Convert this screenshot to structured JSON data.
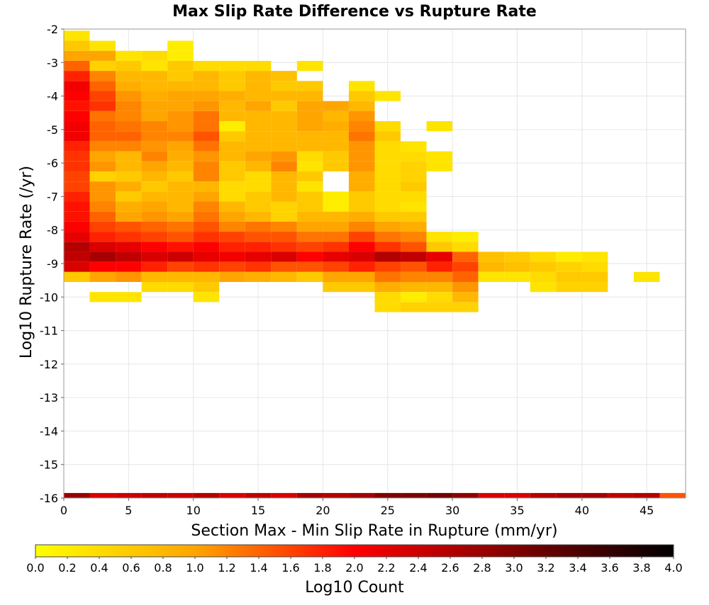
{
  "chart_data": {
    "type": "heatmap",
    "title": "Max Slip Rate Difference vs Rupture Rate",
    "xlabel": "Section Max - Min Slip Rate in Rupture (mm/yr)",
    "ylabel": "Log10 Rupture Rate (/yr)",
    "xlim": [
      0,
      48
    ],
    "ylim": [
      -16,
      -2
    ],
    "xticks": [
      "0",
      "5",
      "10",
      "15",
      "20",
      "25",
      "30",
      "35",
      "40",
      "45"
    ],
    "yticks": [
      "-2",
      "-3",
      "-4",
      "-5",
      "-6",
      "-7",
      "-8",
      "-9",
      "-10",
      "-11",
      "-12",
      "-13",
      "-14",
      "-15",
      "-16"
    ],
    "grid": true,
    "x_bin_width": 2,
    "y_bin_height": 0.3,
    "x_centers": [
      1,
      3,
      5,
      7,
      9,
      11,
      13,
      15,
      17,
      19,
      21,
      23,
      25,
      27,
      29,
      31,
      33,
      35,
      37,
      39,
      41,
      43,
      45,
      47
    ],
    "y_centers": [
      -2.2,
      -2.5,
      -2.8,
      -3.1,
      -3.4,
      -3.7,
      -4.0,
      -4.3,
      -4.6,
      -4.9,
      -5.2,
      -5.5,
      -5.8,
      -6.1,
      -6.4,
      -6.7,
      -7.0,
      -7.3,
      -7.6,
      -7.9,
      -8.2,
      -8.5,
      -8.8,
      -9.1,
      -9.4,
      -9.7,
      -10.0,
      -10.3,
      -16.0
    ],
    "z": [
      [
        0.3,
        null,
        null,
        null,
        null,
        null,
        null,
        null,
        null,
        null,
        null,
        null,
        null,
        null,
        null,
        null,
        null,
        null,
        null,
        null,
        null,
        null,
        null,
        null
      ],
      [
        0.6,
        0.3,
        null,
        null,
        0.2,
        null,
        null,
        null,
        null,
        null,
        null,
        null,
        null,
        null,
        null,
        null,
        null,
        null,
        null,
        null,
        null,
        null,
        null,
        null
      ],
      [
        1.0,
        1.0,
        0.3,
        0.4,
        0.2,
        null,
        null,
        null,
        null,
        null,
        null,
        null,
        null,
        null,
        null,
        null,
        null,
        null,
        null,
        null,
        null,
        null,
        null,
        null
      ],
      [
        1.4,
        0.5,
        0.6,
        0.3,
        0.6,
        0.4,
        0.4,
        0.4,
        null,
        0.3,
        null,
        null,
        null,
        null,
        null,
        null,
        null,
        null,
        null,
        null,
        null,
        null,
        null,
        null
      ],
      [
        1.8,
        1.2,
        0.8,
        0.8,
        0.6,
        0.8,
        0.6,
        0.8,
        0.7,
        null,
        null,
        null,
        null,
        null,
        null,
        null,
        null,
        null,
        null,
        null,
        null,
        null,
        null,
        null
      ],
      [
        2.1,
        1.4,
        0.9,
        0.8,
        0.8,
        0.8,
        0.6,
        0.8,
        0.6,
        0.6,
        null,
        0.3,
        null,
        null,
        null,
        null,
        null,
        null,
        null,
        null,
        null,
        null,
        null,
        null
      ],
      [
        2.0,
        1.6,
        1.1,
        0.9,
        1.0,
        1.0,
        0.9,
        0.8,
        0.8,
        0.8,
        null,
        0.6,
        0.3,
        null,
        null,
        null,
        null,
        null,
        null,
        null,
        null,
        null,
        null,
        null
      ],
      [
        1.9,
        1.7,
        1.2,
        1.0,
        1.0,
        1.1,
        0.8,
        1.0,
        0.6,
        1.0,
        1.0,
        0.8,
        null,
        null,
        null,
        null,
        null,
        null,
        null,
        null,
        null,
        null,
        null,
        null
      ],
      [
        2.0,
        1.3,
        1.2,
        1.0,
        1.1,
        1.3,
        0.8,
        0.8,
        0.8,
        1.0,
        0.8,
        1.1,
        null,
        null,
        null,
        null,
        null,
        null,
        null,
        null,
        null,
        null,
        null,
        null
      ],
      [
        2.1,
        1.4,
        1.3,
        1.2,
        1.1,
        1.3,
        0.2,
        0.8,
        0.8,
        1.0,
        0.9,
        1.2,
        0.4,
        null,
        0.3,
        null,
        null,
        null,
        null,
        null,
        null,
        null,
        null,
        null
      ],
      [
        2.1,
        1.4,
        1.4,
        1.2,
        1.2,
        1.5,
        0.6,
        0.8,
        0.8,
        0.8,
        0.8,
        1.3,
        0.6,
        null,
        null,
        null,
        null,
        null,
        null,
        null,
        null,
        null,
        null,
        null
      ],
      [
        1.8,
        1.2,
        1.2,
        1.1,
        1.0,
        1.3,
        0.8,
        0.8,
        0.8,
        0.8,
        0.8,
        1.1,
        0.4,
        0.3,
        null,
        null,
        null,
        null,
        null,
        null,
        null,
        null,
        null,
        null
      ],
      [
        1.7,
        1.0,
        0.8,
        1.2,
        0.9,
        1.1,
        0.8,
        1.0,
        1.1,
        0.4,
        0.6,
        1.1,
        0.4,
        0.4,
        0.3,
        null,
        null,
        null,
        null,
        null,
        null,
        null,
        null,
        null
      ],
      [
        1.7,
        1.1,
        0.8,
        1.0,
        0.8,
        1.2,
        0.6,
        0.8,
        1.2,
        0.3,
        0.6,
        1.1,
        0.4,
        0.5,
        0.3,
        null,
        null,
        null,
        null,
        null,
        null,
        null,
        null,
        null
      ],
      [
        1.6,
        0.5,
        0.6,
        0.8,
        0.6,
        1.2,
        0.6,
        0.4,
        0.8,
        0.6,
        null,
        0.9,
        0.4,
        0.5,
        null,
        null,
        null,
        null,
        null,
        null,
        null,
        null,
        null,
        null
      ],
      [
        1.6,
        1.1,
        0.9,
        0.6,
        0.8,
        0.8,
        0.4,
        0.4,
        0.8,
        0.3,
        null,
        0.9,
        0.4,
        0.6,
        null,
        null,
        null,
        null,
        null,
        null,
        null,
        null,
        null,
        null
      ],
      [
        1.8,
        1.1,
        0.6,
        0.8,
        0.8,
        1.0,
        0.4,
        0.6,
        0.8,
        0.6,
        0.2,
        0.6,
        0.4,
        0.4,
        null,
        null,
        null,
        null,
        null,
        null,
        null,
        null,
        null,
        null
      ],
      [
        1.9,
        1.2,
        0.9,
        1.0,
        0.8,
        1.2,
        0.8,
        0.6,
        0.5,
        0.6,
        0.2,
        0.6,
        0.4,
        0.3,
        null,
        null,
        null,
        null,
        null,
        null,
        null,
        null,
        null,
        null
      ],
      [
        1.9,
        1.4,
        1.0,
        1.1,
        1.0,
        1.3,
        1.0,
        0.8,
        0.5,
        0.8,
        0.8,
        0.9,
        0.6,
        0.6,
        null,
        null,
        null,
        null,
        null,
        null,
        null,
        null,
        null,
        null
      ],
      [
        2.0,
        1.6,
        1.5,
        1.4,
        1.3,
        1.5,
        1.2,
        1.3,
        1.2,
        1.0,
        1.0,
        1.2,
        1.0,
        0.9,
        null,
        null,
        null,
        null,
        null,
        null,
        null,
        null,
        null,
        null
      ],
      [
        2.2,
        1.8,
        1.7,
        1.6,
        1.5,
        1.7,
        1.6,
        1.5,
        1.5,
        1.3,
        1.3,
        1.6,
        1.3,
        1.2,
        0.3,
        0.2,
        null,
        null,
        null,
        null,
        null,
        null,
        null,
        null
      ],
      [
        2.6,
        2.3,
        2.2,
        2.0,
        1.9,
        2.0,
        1.8,
        1.8,
        1.7,
        1.6,
        1.7,
        2.0,
        1.7,
        1.5,
        0.6,
        0.4,
        null,
        null,
        null,
        null,
        null,
        null,
        null,
        null
      ],
      [
        2.5,
        2.7,
        2.5,
        2.3,
        2.4,
        2.2,
        2.1,
        2.2,
        2.3,
        2.0,
        2.2,
        2.3,
        2.6,
        2.5,
        2.2,
        1.4,
        0.7,
        0.6,
        0.4,
        0.2,
        0.3,
        null,
        null,
        null
      ],
      [
        2.3,
        2.0,
        2.0,
        1.8,
        1.6,
        1.7,
        1.6,
        1.7,
        1.5,
        1.5,
        1.6,
        1.8,
        1.6,
        1.5,
        1.8,
        1.6,
        0.8,
        0.7,
        0.6,
        0.5,
        0.4,
        null,
        null,
        null
      ],
      [
        0.6,
        1.0,
        1.1,
        0.8,
        0.8,
        0.8,
        1.0,
        0.9,
        0.8,
        0.6,
        1.0,
        1.0,
        1.3,
        1.2,
        1.2,
        1.4,
        0.3,
        0.3,
        0.4,
        0.6,
        0.6,
        null,
        0.3,
        null
      ],
      [
        null,
        null,
        null,
        0.4,
        0.4,
        0.6,
        null,
        null,
        null,
        null,
        0.6,
        0.6,
        0.9,
        0.8,
        0.8,
        1.1,
        null,
        null,
        0.3,
        0.5,
        0.5,
        null,
        null,
        null
      ],
      [
        null,
        0.3,
        0.3,
        null,
        null,
        0.3,
        null,
        null,
        null,
        null,
        null,
        null,
        0.4,
        0.2,
        0.4,
        0.8,
        null,
        null,
        null,
        null,
        null,
        null,
        null,
        null
      ],
      [
        null,
        null,
        null,
        null,
        null,
        null,
        null,
        null,
        null,
        null,
        null,
        null,
        0.4,
        0.5,
        0.5,
        0.5,
        null,
        null,
        null,
        null,
        null,
        null,
        null,
        null
      ],
      [
        2.8,
        2.3,
        2.4,
        2.5,
        2.4,
        2.6,
        2.3,
        2.5,
        2.3,
        2.7,
        2.6,
        2.7,
        3.0,
        3.0,
        3.1,
        2.9,
        2.3,
        2.3,
        2.6,
        2.7,
        2.7,
        2.5,
        2.6,
        1.5
      ]
    ],
    "colorbar": {
      "label": "Log10 Count",
      "min": 0.0,
      "max": 4.0,
      "ticks": [
        "0.0",
        "0.2",
        "0.4",
        "0.6",
        "0.8",
        "1.0",
        "1.2",
        "1.4",
        "1.6",
        "1.8",
        "2.0",
        "2.2",
        "2.4",
        "2.6",
        "2.8",
        "3.0",
        "3.2",
        "3.4",
        "3.6",
        "3.8",
        "4.0"
      ],
      "colors": [
        "#ffff00",
        "#ffa500",
        "#ff0000",
        "#800000",
        "#000000"
      ]
    }
  }
}
